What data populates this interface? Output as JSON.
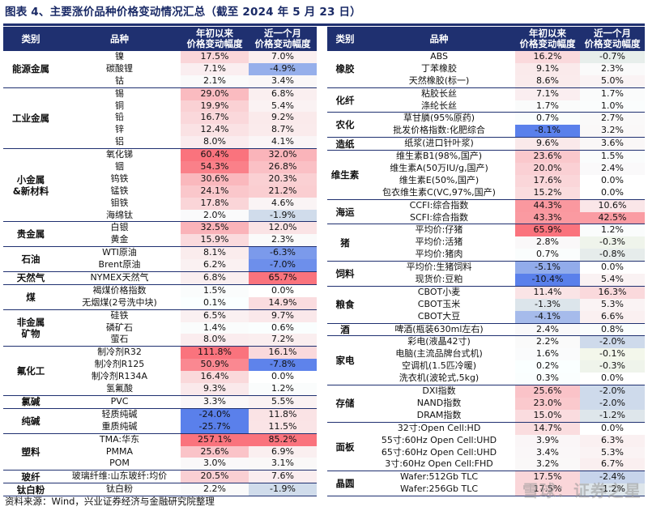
{
  "title": "图表 4、主要涨价品种价格变动情况汇总（截至 2024 年 5 月 23 日）",
  "headers": {
    "category": "类别",
    "product": "品种",
    "ytd": "年初以来\n价格变动幅度",
    "month": "近一个月\n价格变动幅度"
  },
  "colors": {
    "navy": "#1f3070",
    "pos_max": "#f4787f",
    "neg_max": "#5b7fce"
  },
  "left": [
    {
      "category": "能源金属",
      "rows": [
        {
          "product": "镍",
          "ytd": "17.5%",
          "month": "7.0%"
        },
        {
          "product": "碳酸锂",
          "ytd": "7.1%",
          "month": "-4.9%"
        },
        {
          "product": "钴",
          "ytd": "2.1%",
          "month": "3.4%"
        }
      ]
    },
    {
      "category": "工业金属",
      "rows": [
        {
          "product": "锡",
          "ytd": "29.0%",
          "month": "6.8%"
        },
        {
          "product": "铜",
          "ytd": "19.9%",
          "month": "5.4%"
        },
        {
          "product": "铅",
          "ytd": "16.7%",
          "month": "9.2%"
        },
        {
          "product": "锌",
          "ytd": "12.4%",
          "month": "8.7%"
        },
        {
          "product": "铝",
          "ytd": "8.0%",
          "month": "4.1%"
        }
      ]
    },
    {
      "category": "小金属\n&新材料",
      "rows": [
        {
          "product": "氧化锑",
          "ytd": "60.4%",
          "month": "32.0%"
        },
        {
          "product": "铟",
          "ytd": "54.3%",
          "month": "26.8%"
        },
        {
          "product": "钨铁",
          "ytd": "30.6%",
          "month": "20.3%"
        },
        {
          "product": "锰铁",
          "ytd": "24.1%",
          "month": "21.2%"
        },
        {
          "product": "钼铁",
          "ytd": "17.8%",
          "month": "4.6%"
        },
        {
          "product": "海绵钛",
          "ytd": "2.0%",
          "month": "-1.9%"
        }
      ]
    },
    {
      "category": "贵金属",
      "rows": [
        {
          "product": "白银",
          "ytd": "32.5%",
          "month": "12.0%"
        },
        {
          "product": "黄金",
          "ytd": "15.9%",
          "month": "2.3%"
        }
      ]
    },
    {
      "category": "石油",
      "rows": [
        {
          "product": "WTI原油",
          "ytd": "8.1%",
          "month": "-6.3%"
        },
        {
          "product": "Brent原油",
          "ytd": "6.2%",
          "month": "-7.0%"
        }
      ]
    },
    {
      "category": "天然气",
      "rows": [
        {
          "product": "NYMEX天然气",
          "ytd": "6.8%",
          "month": "65.7%"
        }
      ]
    },
    {
      "category": "煤",
      "rows": [
        {
          "product": "褐煤价格指数",
          "ytd": "1.5%",
          "month": "0.0%"
        },
        {
          "product": "无烟煤(2号洗中块)",
          "ytd": "0.1%",
          "month": "14.9%"
        }
      ]
    },
    {
      "category": "非金属\n矿物",
      "rows": [
        {
          "product": "硅铁",
          "ytd": "6.5%",
          "month": "9.7%"
        },
        {
          "product": "磷矿石",
          "ytd": "1.4%",
          "month": "0.6%"
        },
        {
          "product": "萤石",
          "ytd": "8.0%",
          "month": "7.2%"
        }
      ]
    },
    {
      "category": "氟化工",
      "rows": [
        {
          "product": "制冷剂R32",
          "ytd": "111.8%",
          "month": "16.1%"
        },
        {
          "product": "制冷剂R125",
          "ytd": "50.9%",
          "month": "-7.8%"
        },
        {
          "product": "制冷剂R134A",
          "ytd": "16.4%",
          "month": "0.0%"
        },
        {
          "product": "氢氟酸",
          "ytd": "9.3%",
          "month": "1.2%"
        }
      ]
    },
    {
      "category": "氯碱",
      "rows": [
        {
          "product": "PVC",
          "ytd": "3.3%",
          "month": "5.5%"
        }
      ]
    },
    {
      "category": "纯碱",
      "rows": [
        {
          "product": "轻质纯碱",
          "ytd": "-24.0%",
          "month": "11.8%"
        },
        {
          "product": "重质纯碱",
          "ytd": "-25.7%",
          "month": "11.5%"
        }
      ]
    },
    {
      "category": "塑料",
      "rows": [
        {
          "product": "TMA:华东",
          "ytd": "257.1%",
          "month": "85.2%"
        },
        {
          "product": "PMMA",
          "ytd": "25.6%",
          "month": "6.9%"
        },
        {
          "product": "POM",
          "ytd": "3.0%",
          "month": "3.1%"
        }
      ]
    },
    {
      "category": "玻纤",
      "rows": [
        {
          "product": "玻璃纤维:山东玻纤:均价",
          "ytd": "20.5%",
          "month": "7.6%"
        }
      ]
    },
    {
      "category": "钛白粉",
      "rows": [
        {
          "product": "钛白粉",
          "ytd": "2.2%",
          "month": "-1.9%"
        }
      ]
    }
  ],
  "right": [
    {
      "category": "橡胶",
      "rows": [
        {
          "product": "ABS",
          "ytd": "16.2%",
          "month": "-0.7%"
        },
        {
          "product": "丁苯橡胶",
          "ytd": "9.1%",
          "month": "2.3%"
        },
        {
          "product": "天然橡胶(标一)",
          "ytd": "8.6%",
          "month": "5.0%"
        }
      ]
    },
    {
      "category": "化纤",
      "rows": [
        {
          "product": "粘胶长丝",
          "ytd": "7.1%",
          "month": "1.7%"
        },
        {
          "product": "涤纶长丝",
          "ytd": "1.7%",
          "month": "1.0%"
        }
      ]
    },
    {
      "category": "农化",
      "rows": [
        {
          "product": "草甘膦(95%原药)",
          "ytd": "0.7%",
          "month": "2.7%"
        },
        {
          "product": "批发价格指数:化肥综合",
          "ytd": "-8.1%",
          "month": "3.2%"
        }
      ]
    },
    {
      "category": "造纸",
      "rows": [
        {
          "product": "纸浆(进口针叶浆)",
          "ytd": "9.6%",
          "month": "3.6%"
        }
      ]
    },
    {
      "category": "维生素",
      "rows": [
        {
          "product": "维生素B1(98%,国产)",
          "ytd": "23.6%",
          "month": "1.5%"
        },
        {
          "product": "维生素A(50万IU/g,国产)",
          "ytd": "20.0%",
          "month": "2.4%"
        },
        {
          "product": "维生素E(50%,国产)",
          "ytd": "17.6%",
          "month": "0.0%"
        },
        {
          "product": "包衣维生素C(VC,97%,国产)",
          "ytd": "15.2%",
          "month": "0.0%"
        }
      ]
    },
    {
      "category": "海运",
      "rows": [
        {
          "product": "CCFI:综合指数",
          "ytd": "44.3%",
          "month": "10.6%"
        },
        {
          "product": "SCFI:综合指数",
          "ytd": "43.3%",
          "month": "42.5%"
        }
      ]
    },
    {
      "category": "猪",
      "rows": [
        {
          "product": "平均价:仔猪",
          "ytd": "65.9%",
          "month": "1.2%"
        },
        {
          "product": "平均价:活猪",
          "ytd": "2.8%",
          "month": "-0.3%"
        },
        {
          "product": "平均价:猪肉",
          "ytd": "0.7%",
          "month": "-0.8%"
        }
      ]
    },
    {
      "category": "饲料",
      "rows": [
        {
          "product": "平均价:生猪饲料",
          "ytd": "-5.1%",
          "month": "0.0%"
        },
        {
          "product": "现货价:豆粕",
          "ytd": "-10.4%",
          "month": "5.4%"
        }
      ]
    },
    {
      "category": "粮食",
      "rows": [
        {
          "product": "CBOT小麦",
          "ytd": "11.4%",
          "month": "16.3%"
        },
        {
          "product": "CBOT玉米",
          "ytd": "-1.3%",
          "month": "5.3%"
        },
        {
          "product": "CBOT大豆",
          "ytd": "-4.1%",
          "month": "6.6%"
        }
      ]
    },
    {
      "category": "酒",
      "rows": [
        {
          "product": "啤酒(瓶装630ml左右)",
          "ytd": "2.4%",
          "month": "0.8%"
        }
      ]
    },
    {
      "category": "家电",
      "rows": [
        {
          "product": "彩电(液晶42寸)",
          "ytd": "2.2%",
          "month": "-2.0%"
        },
        {
          "product": "电脑(主流品牌台式机)",
          "ytd": "1.6%",
          "month": "-0.1%"
        },
        {
          "product": "空调机(1.5匹冷暖)",
          "ytd": "0.2%",
          "month": "-0.3%"
        },
        {
          "product": "洗衣机(波轮式,5kg)",
          "ytd": "0.3%",
          "month": "0.0%"
        }
      ]
    },
    {
      "category": "存储",
      "rows": [
        {
          "product": "DXI指数",
          "ytd": "25.6%",
          "month": "-2.0%"
        },
        {
          "product": "NAND指数",
          "ytd": "23.0%",
          "month": "-2.0%"
        },
        {
          "product": "DRAM指数",
          "ytd": "15.0%",
          "month": "-1.2%"
        }
      ]
    },
    {
      "category": "面板",
      "rows": [
        {
          "product": "32寸:Open Cell:HD",
          "ytd": "14.7%",
          "month": "0.0%"
        },
        {
          "product": "55寸:60Hz Open Cell:UHD",
          "ytd": "3.9%",
          "month": "6.3%"
        },
        {
          "product": "65寸:60Hz Open Cell:UHD",
          "ytd": "3.4%",
          "month": "5.3%"
        },
        {
          "product": "3寸:60Hz Open Cell:FHD",
          "ytd": "3.2%",
          "month": "6.7%"
        }
      ]
    },
    {
      "category": "晶圆",
      "rows": [
        {
          "product": "Wafer:512Gb TLC",
          "ytd": "17.5%",
          "month": "-2.4%"
        },
        {
          "product": "Wafer:256Gb TLC",
          "ytd": "17.5%",
          "month": "-1.2%"
        }
      ]
    }
  ],
  "footer": "资料来源：Wind，兴业证券经济与金融研究院整理",
  "watermark": "雪球：证券之星"
}
